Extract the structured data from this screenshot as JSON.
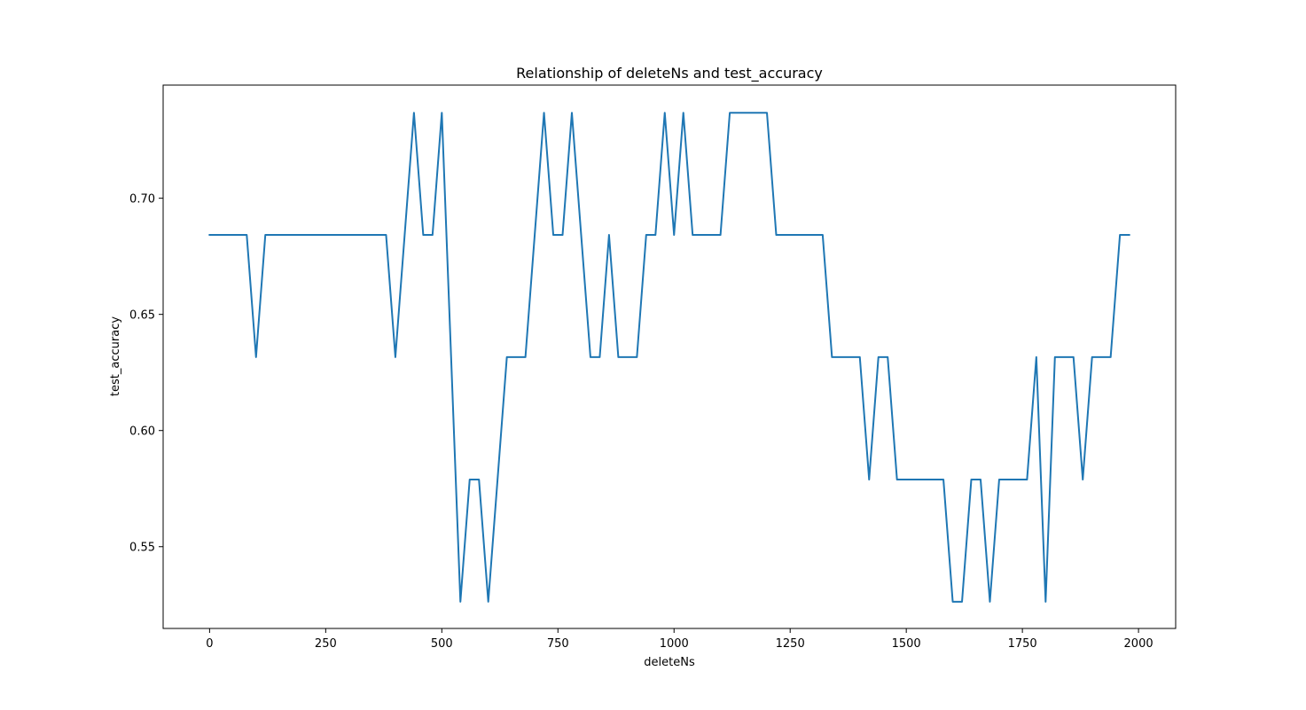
{
  "chart_data": {
    "type": "line",
    "title": "Relationship of deleteNs and test_accuracy",
    "xlabel": "deleteNs",
    "ylabel": "test_accuracy",
    "xlim": [
      -100,
      2080
    ],
    "ylim": [
      0.5148,
      0.7487
    ],
    "x_ticks": [
      0,
      250,
      500,
      750,
      1000,
      1250,
      1500,
      1750,
      2000
    ],
    "x_tick_labels": [
      "0",
      "250",
      "500",
      "750",
      "1000",
      "1250",
      "1500",
      "1750",
      "2000"
    ],
    "y_ticks": [
      0.55,
      0.6,
      0.65,
      0.7
    ],
    "y_tick_labels": [
      "0.55",
      "0.60",
      "0.65",
      "0.70"
    ],
    "grid": false,
    "series": [
      {
        "color": "#1f77b4",
        "x": [
          0,
          20,
          40,
          60,
          80,
          100,
          120,
          140,
          160,
          180,
          200,
          220,
          240,
          260,
          280,
          300,
          320,
          340,
          360,
          380,
          400,
          420,
          440,
          460,
          480,
          500,
          520,
          540,
          560,
          580,
          600,
          620,
          640,
          660,
          680,
          700,
          720,
          740,
          760,
          780,
          800,
          820,
          840,
          860,
          880,
          900,
          920,
          940,
          960,
          980,
          1000,
          1020,
          1040,
          1060,
          1080,
          1100,
          1120,
          1140,
          1160,
          1180,
          1200,
          1220,
          1240,
          1260,
          1280,
          1300,
          1320,
          1340,
          1360,
          1380,
          1400,
          1420,
          1440,
          1460,
          1480,
          1500,
          1520,
          1540,
          1560,
          1580,
          1600,
          1620,
          1640,
          1660,
          1680,
          1700,
          1720,
          1740,
          1760,
          1780,
          1800,
          1820,
          1840,
          1860,
          1880,
          1900,
          1920,
          1940,
          1960,
          1980
        ],
        "y": [
          0.6842,
          0.6842,
          0.6842,
          0.6842,
          0.6842,
          0.6316,
          0.6842,
          0.6842,
          0.6842,
          0.6842,
          0.6842,
          0.6842,
          0.6842,
          0.6842,
          0.6842,
          0.6842,
          0.6842,
          0.6842,
          0.6842,
          0.6842,
          0.6316,
          0.6842,
          0.7368,
          0.6842,
          0.6842,
          0.7368,
          0.6316,
          0.5263,
          0.5789,
          0.5789,
          0.5263,
          0.5789,
          0.6316,
          0.6316,
          0.6316,
          0.6842,
          0.7368,
          0.6842,
          0.6842,
          0.7368,
          0.6842,
          0.6316,
          0.6316,
          0.6842,
          0.6316,
          0.6316,
          0.6316,
          0.6842,
          0.6842,
          0.7368,
          0.6842,
          0.7368,
          0.6842,
          0.6842,
          0.6842,
          0.6842,
          0.7368,
          0.7368,
          0.7368,
          0.7368,
          0.7368,
          0.6842,
          0.6842,
          0.6842,
          0.6842,
          0.6842,
          0.6842,
          0.6316,
          0.6316,
          0.6316,
          0.6316,
          0.5789,
          0.6316,
          0.6316,
          0.5789,
          0.5789,
          0.5789,
          0.5789,
          0.5789,
          0.5789,
          0.5263,
          0.5263,
          0.5789,
          0.5789,
          0.5263,
          0.5789,
          0.5789,
          0.5789,
          0.5789,
          0.6316,
          0.5263,
          0.6316,
          0.6316,
          0.6316,
          0.5789,
          0.6316,
          0.6316,
          0.6316,
          0.6842,
          0.6842
        ]
      }
    ]
  }
}
